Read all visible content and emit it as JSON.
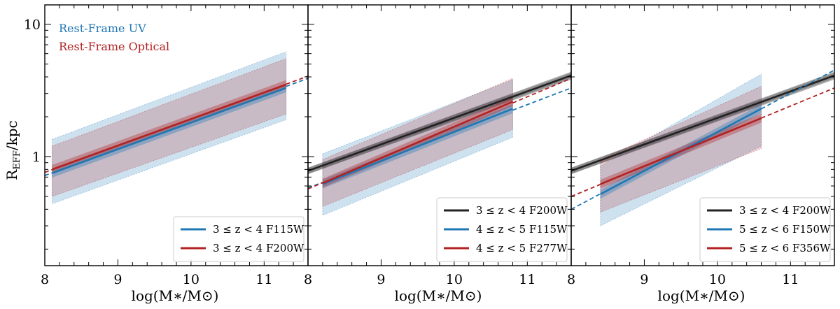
{
  "chart_data": {
    "type": "line",
    "ylabel_main": "R",
    "ylabel_sub": "EFF",
    "ylabel_rest": "/kpc",
    "xlabel": "log(M∗/M⊙)",
    "x_tick_labels": [
      "8",
      "9",
      "10",
      "11"
    ],
    "y_tick_labels": [
      "1",
      "10"
    ],
    "xlim": [
      8,
      11.6
    ],
    "ylim_kpc": [
      0.15,
      14
    ],
    "yscale": "log",
    "colors": {
      "uv": "#1f77b4",
      "optical": "#b22222",
      "ref": "#222222"
    },
    "corner_labels": [
      {
        "text": "Rest-Frame UV",
        "color": "#1f77b4"
      },
      {
        "text": "Rest-Frame Optical",
        "color": "#b22222"
      }
    ],
    "panels": [
      {
        "name": "panel-1",
        "legend": [
          {
            "label": "3 ≤ z < 4 F115W",
            "color": "#1f77b4"
          },
          {
            "label": "3 ≤ z < 4 F200W",
            "color": "#b22222"
          }
        ],
        "series": [
          {
            "name": "3 ≤ z < 4 F115W",
            "color": "#1f77b4",
            "x_fit": [
              8.1,
              11.3
            ],
            "y_fit": [
              0.75,
              3.3
            ],
            "x_ext": [
              8.0,
              11.6
            ],
            "y_ext": [
              0.72,
              3.9
            ],
            "band_lo": [
              0.44,
              1.9
            ],
            "band_hi": [
              1.35,
              6.2
            ]
          },
          {
            "name": "3 ≤ z < 4 F200W",
            "color": "#b22222",
            "x_fit": [
              8.1,
              11.3
            ],
            "y_fit": [
              0.8,
              3.5
            ],
            "x_ext": [
              8.0,
              11.6
            ],
            "y_ext": [
              0.76,
              4.05
            ],
            "band_lo": [
              0.5,
              2.1
            ],
            "band_hi": [
              1.2,
              5.5
            ]
          }
        ]
      },
      {
        "name": "panel-2",
        "legend": [
          {
            "label": "3 ≤ z < 4 F200W",
            "color": "#222222"
          },
          {
            "label": "4 ≤ z < 5 F115W",
            "color": "#1f77b4"
          },
          {
            "label": "4 ≤ z < 5 F277W",
            "color": "#b22222"
          }
        ],
        "series": [
          {
            "name": "3 ≤ z < 4 F200W",
            "color": "#222222",
            "x_fit": [
              8.0,
              11.6
            ],
            "y_fit": [
              0.78,
              4.1
            ],
            "x_ext": [
              8.0,
              11.6
            ],
            "y_ext": [
              0.78,
              4.1
            ],
            "band_lo": [
              0.74,
              3.85
            ],
            "band_hi": [
              0.82,
              4.35
            ]
          },
          {
            "name": "4 ≤ z < 5 F115W",
            "color": "#1f77b4",
            "x_fit": [
              8.2,
              10.8
            ],
            "y_fit": [
              0.62,
              2.3
            ],
            "x_ext": [
              8.0,
              11.6
            ],
            "y_ext": [
              0.58,
              3.3
            ],
            "band_lo": [
              0.36,
              1.4
            ],
            "band_hi": [
              1.05,
              3.8
            ]
          },
          {
            "name": "4 ≤ z < 5 F277W",
            "color": "#b22222",
            "x_fit": [
              8.2,
              10.8
            ],
            "y_fit": [
              0.63,
              2.6
            ],
            "x_ext": [
              8.0,
              11.6
            ],
            "y_ext": [
              0.57,
              3.9
            ],
            "band_lo": [
              0.42,
              1.6
            ],
            "band_hi": [
              0.95,
              3.9
            ]
          }
        ]
      },
      {
        "name": "panel-3",
        "legend": [
          {
            "label": "3 ≤ z < 4 F200W",
            "color": "#222222"
          },
          {
            "label": "5 ≤ z < 6 F150W",
            "color": "#1f77b4"
          },
          {
            "label": "5 ≤ z < 6 F356W",
            "color": "#b22222"
          }
        ],
        "series": [
          {
            "name": "3 ≤ z < 4 F200W",
            "color": "#222222",
            "x_fit": [
              8.0,
              11.6
            ],
            "y_fit": [
              0.78,
              4.1
            ],
            "x_ext": [
              8.0,
              11.6
            ],
            "y_ext": [
              0.78,
              4.1
            ],
            "band_lo": [
              0.74,
              3.85
            ],
            "band_hi": [
              0.82,
              4.35
            ]
          },
          {
            "name": "5 ≤ z < 6 F150W",
            "color": "#1f77b4",
            "x_fit": [
              8.4,
              10.6
            ],
            "y_fit": [
              0.52,
              2.3
            ],
            "x_ext": [
              8.0,
              11.6
            ],
            "y_ext": [
              0.4,
              4.5
            ],
            "band_lo": [
              0.3,
              1.2
            ],
            "band_hi": [
              0.85,
              4.2
            ]
          },
          {
            "name": "5 ≤ z < 6 F356W",
            "color": "#b22222",
            "x_fit": [
              8.4,
              10.6
            ],
            "y_fit": [
              0.62,
              1.95
            ],
            "x_ext": [
              8.0,
              11.6
            ],
            "y_ext": [
              0.5,
              3.3
            ],
            "band_lo": [
              0.38,
              1.15
            ],
            "band_hi": [
              0.95,
              3.4
            ]
          }
        ]
      }
    ]
  }
}
